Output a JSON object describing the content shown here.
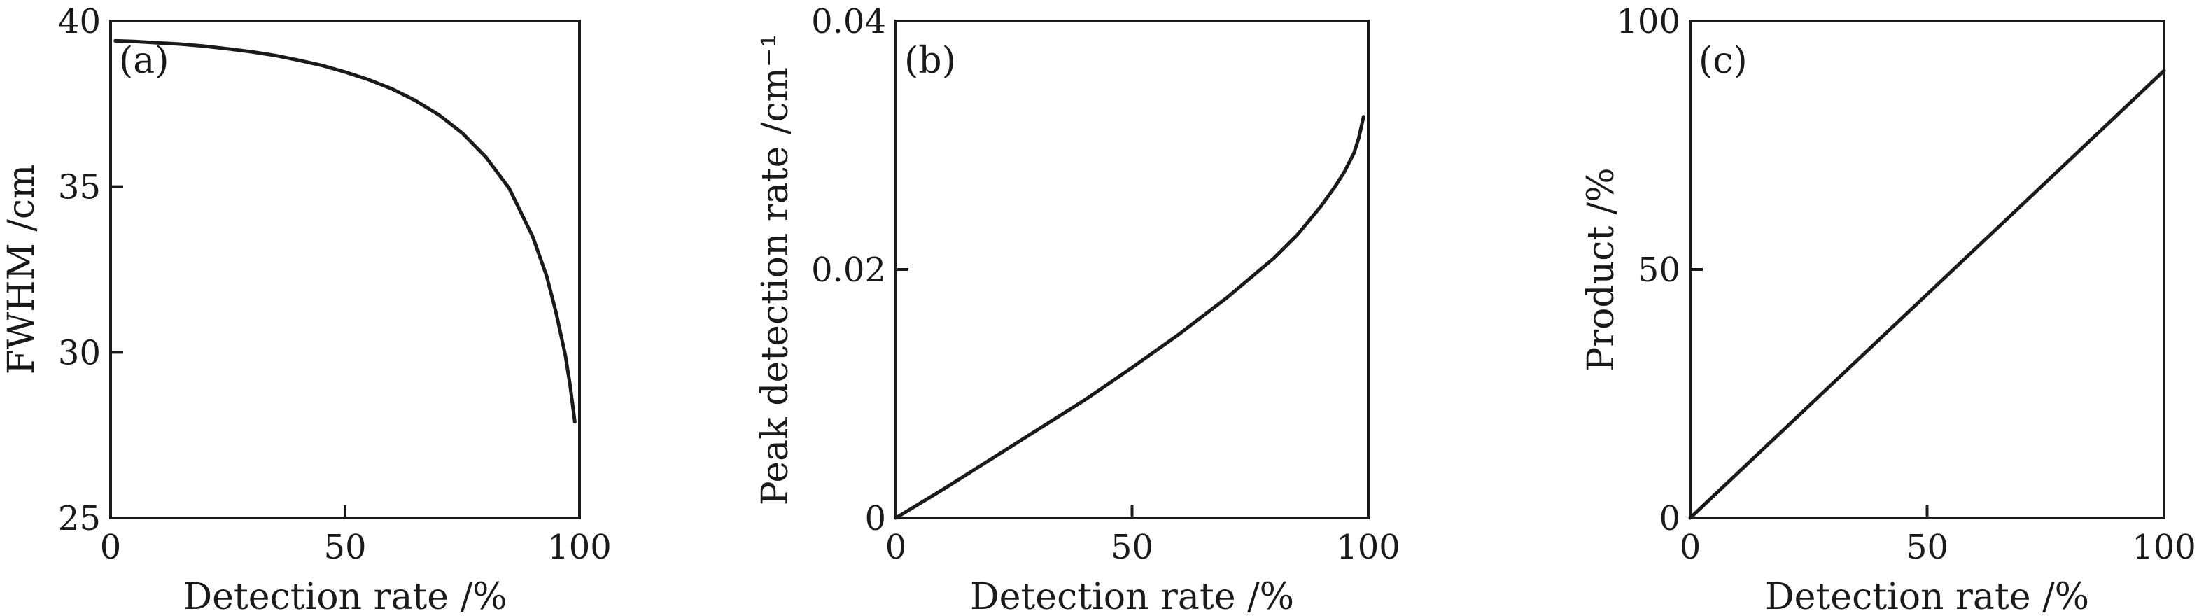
{
  "chart_data": [
    {
      "type": "line",
      "panel_label": "(a)",
      "xlabel": "Detection rate /%",
      "ylabel": "FWHM /cm",
      "xlim": [
        0,
        100
      ],
      "ylim": [
        25,
        40
      ],
      "xticks": [
        0,
        50,
        100
      ],
      "yticks": [
        25,
        30,
        35,
        40
      ],
      "x_tick_labels": [
        "0",
        "50",
        "100"
      ],
      "y_tick_labels": [
        "25",
        "30",
        "35",
        "40"
      ],
      "grid": false,
      "series": [
        {
          "x": [
            1,
            5,
            10,
            15,
            20,
            25,
            30,
            35,
            40,
            45,
            50,
            55,
            60,
            65,
            70,
            75,
            80,
            85,
            90,
            93,
            95,
            97,
            98,
            99
          ],
          "y": [
            39.4,
            39.38,
            39.34,
            39.3,
            39.24,
            39.16,
            39.07,
            38.96,
            38.82,
            38.66,
            38.46,
            38.23,
            37.95,
            37.6,
            37.17,
            36.62,
            35.9,
            34.95,
            33.5,
            32.3,
            31.2,
            29.9,
            29.0,
            27.9
          ]
        }
      ]
    },
    {
      "type": "line",
      "panel_label": "(b)",
      "xlabel": "Detection rate /%",
      "ylabel": "Peak detection rate /cm⁻¹",
      "xlim": [
        0,
        100
      ],
      "ylim": [
        0,
        0.04
      ],
      "xticks": [
        0,
        50,
        100
      ],
      "yticks": [
        0,
        0.02,
        0.04
      ],
      "x_tick_labels": [
        "0",
        "50",
        "100"
      ],
      "y_tick_labels": [
        "0",
        "0.02",
        "0.04"
      ],
      "grid": false,
      "series": [
        {
          "x": [
            0,
            10,
            20,
            30,
            40,
            50,
            60,
            70,
            80,
            85,
            90,
            93,
            95,
            97,
            98,
            99
          ],
          "y": [
            0,
            0.0023,
            0.0047,
            0.0071,
            0.0095,
            0.0121,
            0.0148,
            0.0177,
            0.0209,
            0.0228,
            0.0251,
            0.0267,
            0.0279,
            0.0294,
            0.0306,
            0.0323
          ]
        }
      ]
    },
    {
      "type": "line",
      "panel_label": "(c)",
      "xlabel": "Detection rate /%",
      "ylabel": "Product /%",
      "xlim": [
        0,
        100
      ],
      "ylim": [
        0,
        100
      ],
      "xticks": [
        0,
        50,
        100
      ],
      "yticks": [
        0,
        50,
        100
      ],
      "x_tick_labels": [
        "0",
        "50",
        "100"
      ],
      "y_tick_labels": [
        "0",
        "50",
        "100"
      ],
      "grid": false,
      "series": [
        {
          "x": [
            0,
            100
          ],
          "y": [
            0,
            90
          ]
        }
      ]
    }
  ],
  "colors": {
    "ink": "#1a1a1a",
    "background": "#ffffff"
  }
}
